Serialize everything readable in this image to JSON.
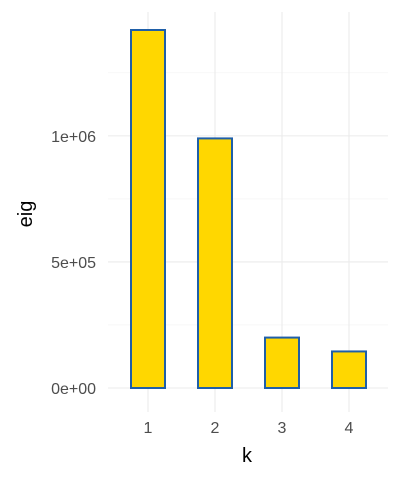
{
  "chart_data": {
    "type": "bar",
    "categories": [
      "1",
      "2",
      "3",
      "4"
    ],
    "values": [
      1420000,
      990000,
      200000,
      145000
    ],
    "xlabel": "k",
    "ylabel": "eig",
    "ylim": [
      0,
      1420000
    ],
    "yticks": [
      0,
      500000,
      1000000
    ],
    "ytick_labels": [
      "0e+00",
      "5e+05",
      "1e+06"
    ],
    "grid": true,
    "legend": "none",
    "bar_fill": "#FFD700",
    "bar_stroke": "#1F5FA8"
  }
}
